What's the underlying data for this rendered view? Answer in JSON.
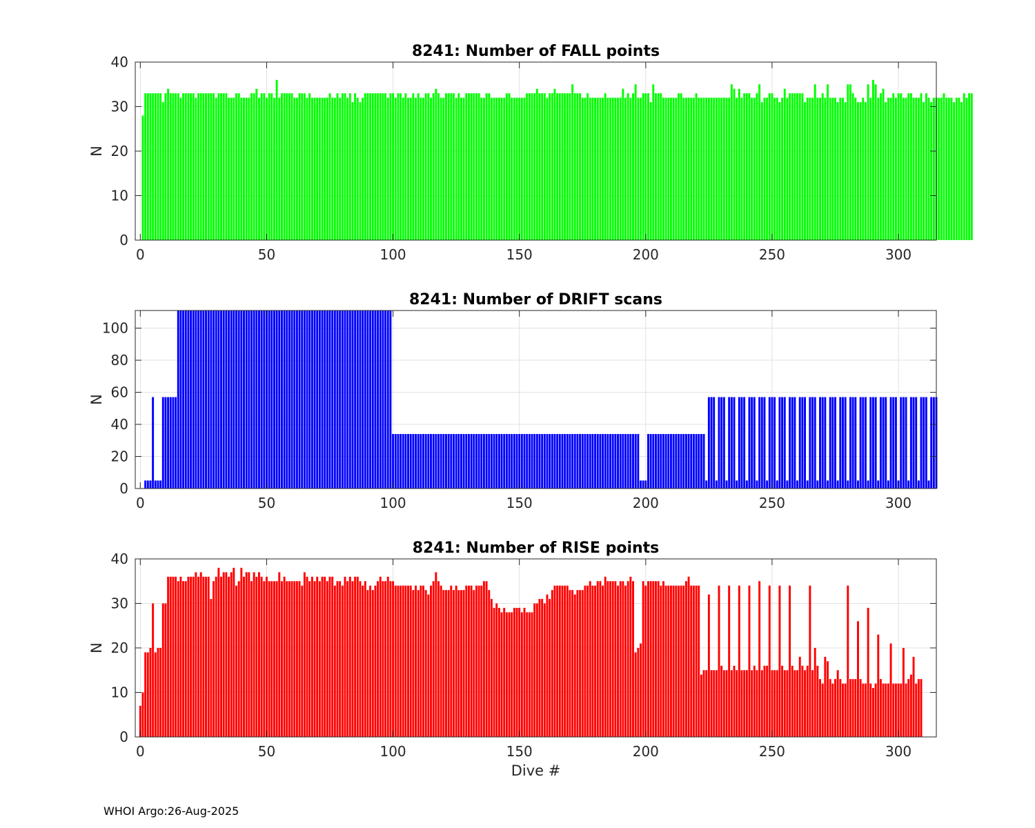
{
  "footer": "WHOI Argo:26-Aug-2025",
  "chart_data": [
    {
      "type": "bar",
      "title": "8241: Number of FALL points",
      "xlabel": "",
      "ylabel": "N",
      "xlim": [
        -2,
        315
      ],
      "ylim": [
        0,
        40
      ],
      "xticks": [
        0,
        50,
        100,
        150,
        200,
        250,
        300
      ],
      "yticks": [
        0,
        10,
        20,
        30,
        40
      ],
      "grid": true,
      "color": "#00ff00",
      "x_start": 1,
      "values": [
        28,
        33,
        33,
        33,
        33,
        33,
        33,
        33,
        31,
        33,
        34,
        33,
        33,
        33,
        33,
        32,
        33,
        33,
        33,
        33,
        33,
        32,
        33,
        33,
        33,
        33,
        33,
        33,
        33,
        32,
        33,
        33,
        33,
        33,
        32,
        32,
        32,
        33,
        33,
        32,
        32,
        32,
        32,
        33,
        33,
        34,
        32,
        33,
        33,
        32,
        33,
        33,
        32,
        36,
        32,
        33,
        33,
        33,
        33,
        33,
        32,
        32,
        33,
        33,
        33,
        32,
        33,
        32,
        32,
        32,
        32,
        32,
        32,
        32,
        33,
        32,
        32,
        33,
        32,
        33,
        33,
        32,
        33,
        31,
        33,
        32,
        31,
        32,
        33,
        33,
        33,
        33,
        33,
        33,
        33,
        33,
        33,
        32,
        33,
        33,
        32,
        33,
        33,
        32,
        33,
        32,
        32,
        33,
        32,
        33,
        32,
        32,
        33,
        33,
        32,
        33,
        34,
        33,
        32,
        32,
        33,
        33,
        33,
        33,
        32,
        33,
        32,
        32,
        33,
        33,
        33,
        33,
        33,
        33,
        32,
        32,
        33,
        33,
        32,
        32,
        32,
        32,
        32,
        32,
        33,
        33,
        32,
        32,
        32,
        32,
        32,
        32,
        33,
        33,
        33,
        33,
        34,
        33,
        33,
        33,
        32,
        33,
        33,
        34,
        33,
        33,
        33,
        33,
        33,
        33,
        35,
        33,
        33,
        33,
        32,
        32,
        33,
        32,
        32,
        32,
        32,
        32,
        32,
        33,
        32,
        32,
        32,
        32,
        32,
        32,
        34,
        32,
        33,
        32,
        33,
        35,
        32,
        32,
        33,
        33,
        33,
        31,
        35,
        33,
        33,
        33,
        32,
        32,
        32,
        32,
        32,
        32,
        33,
        33,
        32,
        32,
        32,
        32,
        32,
        33,
        32,
        32,
        32,
        32,
        32,
        32,
        32,
        32,
        32,
        32,
        32,
        32,
        32,
        35,
        34,
        32,
        34,
        32,
        33,
        33,
        33,
        32,
        32,
        33,
        35,
        31,
        32,
        32,
        33,
        33,
        32,
        32,
        31,
        32,
        34,
        32,
        33,
        33,
        33,
        33,
        33,
        33,
        31,
        32,
        32,
        32,
        35,
        32,
        32,
        33,
        32,
        35,
        32,
        32,
        32,
        31,
        32,
        32,
        31,
        35,
        35,
        33,
        32,
        31,
        31,
        32,
        31,
        35,
        32,
        36,
        35,
        32,
        33,
        34,
        31,
        32,
        32,
        33,
        32,
        33,
        33,
        32,
        32,
        33,
        33,
        32,
        32,
        32,
        33,
        31,
        33,
        32,
        31,
        32,
        32,
        32,
        32,
        33,
        32,
        32,
        32,
        31,
        32,
        32,
        31,
        33,
        32,
        33,
        33
      ]
    },
    {
      "type": "bar",
      "title": "8241: Number of DRIFT scans",
      "xlabel": "",
      "ylabel": "N",
      "xlim": [
        -2,
        315
      ],
      "ylim": [
        0,
        111
      ],
      "xticks": [
        0,
        50,
        100,
        150,
        200,
        250,
        300
      ],
      "yticks": [
        0,
        20,
        40,
        60,
        80,
        100
      ],
      "grid": true,
      "color": "#0000ff",
      "x_start": 1,
      "values": [
        0,
        5,
        5,
        5,
        57,
        5,
        5,
        5,
        57,
        57,
        57,
        57,
        57,
        57,
        111,
        111,
        111,
        111,
        111,
        111,
        111,
        111,
        111,
        111,
        111,
        111,
        111,
        111,
        111,
        111,
        111,
        111,
        111,
        111,
        111,
        111,
        111,
        111,
        111,
        111,
        111,
        111,
        111,
        111,
        111,
        111,
        111,
        111,
        111,
        111,
        111,
        111,
        111,
        111,
        111,
        111,
        111,
        111,
        111,
        111,
        111,
        111,
        111,
        111,
        111,
        111,
        111,
        111,
        111,
        111,
        111,
        111,
        111,
        111,
        111,
        111,
        111,
        111,
        111,
        111,
        111,
        111,
        111,
        111,
        111,
        111,
        111,
        111,
        111,
        111,
        111,
        111,
        111,
        111,
        111,
        111,
        111,
        111,
        111,
        34,
        34,
        34,
        34,
        34,
        34,
        34,
        34,
        34,
        34,
        34,
        34,
        34,
        34,
        34,
        34,
        34,
        34,
        34,
        34,
        34,
        34,
        34,
        34,
        34,
        34,
        34,
        34,
        34,
        34,
        34,
        34,
        34,
        34,
        34,
        34,
        34,
        34,
        34,
        34,
        34,
        34,
        34,
        34,
        34,
        34,
        34,
        34,
        34,
        34,
        34,
        34,
        34,
        34,
        34,
        34,
        34,
        34,
        34,
        34,
        34,
        34,
        34,
        34,
        34,
        34,
        34,
        34,
        34,
        34,
        34,
        34,
        34,
        34,
        34,
        34,
        34,
        34,
        34,
        34,
        34,
        34,
        34,
        34,
        34,
        34,
        34,
        34,
        34,
        34,
        34,
        34,
        34,
        34,
        34,
        34,
        34,
        34,
        5,
        5,
        5,
        34,
        34,
        34,
        34,
        34,
        34,
        34,
        34,
        34,
        34,
        34,
        34,
        34,
        34,
        34,
        34,
        34,
        34,
        34,
        34,
        34,
        34,
        34,
        5,
        57,
        57,
        57,
        5,
        57,
        57,
        57,
        5,
        57,
        57,
        57,
        5,
        57,
        57,
        57,
        5,
        57,
        57,
        57,
        5,
        57,
        57,
        57,
        5,
        57,
        57,
        57,
        5,
        57,
        57,
        57,
        5,
        57,
        57,
        57,
        5,
        57,
        57,
        57,
        5,
        57,
        57,
        57,
        5,
        57,
        57,
        57,
        5,
        57,
        57,
        57,
        5,
        57,
        57,
        57,
        5,
        57,
        57,
        57,
        5,
        57,
        57,
        57,
        5,
        57,
        57,
        57,
        5,
        57,
        57,
        57,
        5,
        57,
        57,
        57,
        5,
        57,
        57,
        57,
        5,
        57,
        57,
        57,
        5,
        57,
        57,
        57,
        5,
        57,
        57,
        57
      ]
    },
    {
      "type": "bar",
      "title": "8241: Number of RISE points",
      "xlabel": "Dive #",
      "ylabel": "N",
      "xlim": [
        -2,
        315
      ],
      "ylim": [
        0,
        40
      ],
      "xticks": [
        0,
        50,
        100,
        150,
        200,
        250,
        300
      ],
      "yticks": [
        0,
        10,
        20,
        30,
        40
      ],
      "grid": true,
      "color": "#ff0000",
      "x_start": 0,
      "values": [
        7,
        10,
        19,
        19,
        20,
        30,
        19,
        20,
        20,
        30,
        30,
        36,
        36,
        36,
        36,
        35,
        36,
        35,
        35,
        36,
        36,
        36,
        37,
        36,
        37,
        36,
        36,
        36,
        31,
        35,
        36,
        38,
        36,
        37,
        37,
        36,
        37,
        38,
        34,
        35,
        38,
        36,
        37,
        37,
        35,
        37,
        36,
        37,
        36,
        35,
        36,
        35,
        35,
        35,
        35,
        37,
        35,
        36,
        35,
        35,
        35,
        35,
        35,
        35,
        34,
        37,
        36,
        35,
        36,
        35,
        36,
        35,
        36,
        36,
        35,
        36,
        36,
        34,
        35,
        35,
        34,
        36,
        35,
        36,
        35,
        36,
        36,
        35,
        34,
        35,
        33,
        34,
        33,
        34,
        35,
        36,
        35,
        35,
        36,
        35,
        35,
        34,
        34,
        34,
        34,
        34,
        34,
        34,
        33,
        34,
        33,
        34,
        34,
        33,
        32,
        34,
        35,
        37,
        35,
        34,
        33,
        33,
        33,
        34,
        33,
        34,
        33,
        33,
        33,
        34,
        34,
        34,
        33,
        34,
        34,
        34,
        35,
        35,
        33,
        31,
        29,
        30,
        29,
        28,
        29,
        28,
        28,
        28,
        29,
        29,
        29,
        28,
        29,
        28,
        28,
        28,
        30,
        30,
        31,
        31,
        30,
        32,
        31,
        33,
        34,
        34,
        34,
        34,
        34,
        34,
        33,
        33,
        32,
        33,
        33,
        33,
        34,
        34,
        35,
        34,
        34,
        35,
        35,
        34,
        36,
        35,
        35,
        35,
        35,
        34,
        35,
        35,
        34,
        35,
        36,
        35,
        19,
        20,
        21,
        35,
        34,
        35,
        35,
        35,
        35,
        35,
        34,
        35,
        34,
        34,
        34,
        34,
        34,
        34,
        34,
        34,
        35,
        36,
        34,
        34,
        34,
        34,
        14,
        15,
        15,
        32,
        15,
        15,
        15,
        34,
        16,
        15,
        15,
        34,
        15,
        16,
        15,
        34,
        15,
        15,
        15,
        34,
        15,
        16,
        15,
        35,
        15,
        16,
        16,
        34,
        15,
        15,
        15,
        34,
        16,
        15,
        15,
        34,
        16,
        15,
        15,
        18,
        16,
        15,
        16,
        34,
        15,
        20,
        16,
        13,
        12,
        18,
        17,
        13,
        12,
        13,
        15,
        13,
        12,
        12,
        34,
        13,
        13,
        13,
        26,
        13,
        12,
        12,
        29,
        12,
        11,
        12,
        23,
        13,
        12,
        12,
        12,
        21,
        12,
        12,
        12,
        12,
        20,
        12,
        13,
        14,
        18,
        12,
        13,
        13
      ]
    }
  ]
}
